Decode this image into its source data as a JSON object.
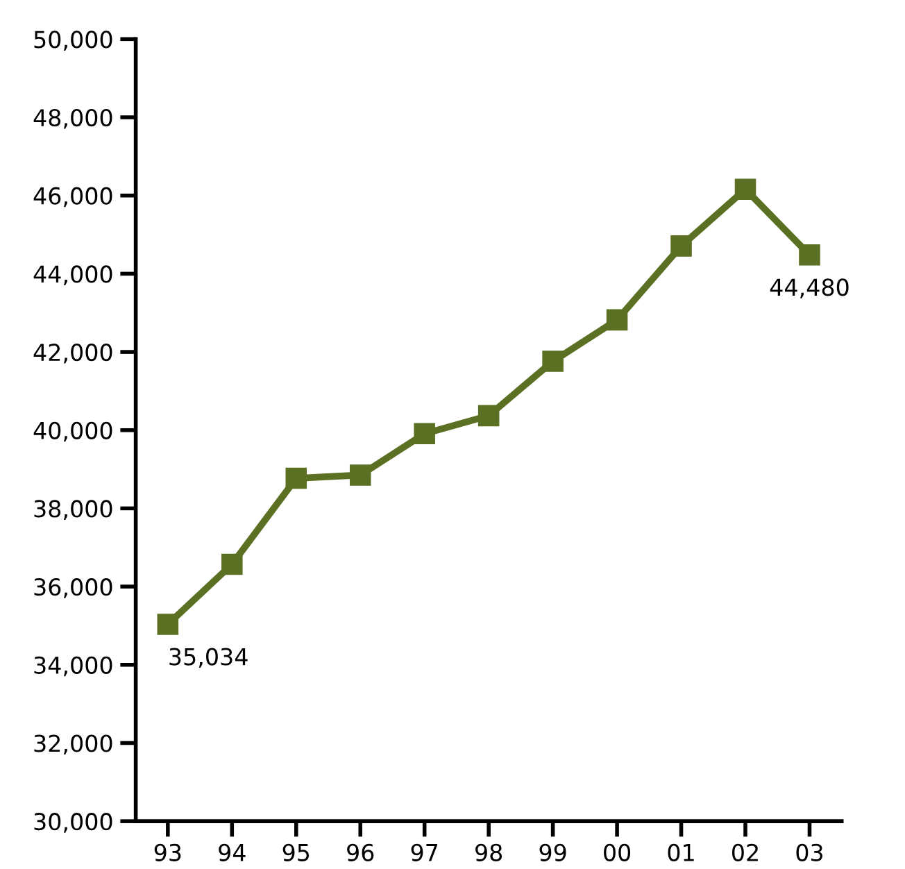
{
  "chart_data": {
    "type": "line",
    "categories": [
      "93",
      "94",
      "95",
      "96",
      "97",
      "98",
      "99",
      "00",
      "01",
      "02",
      "03"
    ],
    "series": [
      {
        "color": "#5b7023",
        "values": [
          35034,
          36570,
          38770,
          38850,
          39910,
          40370,
          41760,
          42820,
          44710,
          46160,
          44480
        ],
        "value_labels": [
          "35,034",
          null,
          null,
          null,
          null,
          null,
          null,
          null,
          null,
          null,
          "44,480"
        ]
      }
    ],
    "ylim": [
      30000,
      50000
    ],
    "yticks": [
      {
        "value": 30000,
        "label": "30,000"
      },
      {
        "value": 32000,
        "label": "32,000"
      },
      {
        "value": 34000,
        "label": "34,000"
      },
      {
        "value": 36000,
        "label": "36,000"
      },
      {
        "value": 38000,
        "label": "38,000"
      },
      {
        "value": 40000,
        "label": "40,000"
      },
      {
        "value": 42000,
        "label": "42,000"
      },
      {
        "value": 44000,
        "label": "44,000"
      },
      {
        "value": 46000,
        "label": "46,000"
      },
      {
        "value": 48000,
        "label": "48,000"
      },
      {
        "value": 50000,
        "label": "50,000"
      }
    ],
    "marker": "square",
    "line_style": "solid",
    "grid": false,
    "legend": false
  }
}
